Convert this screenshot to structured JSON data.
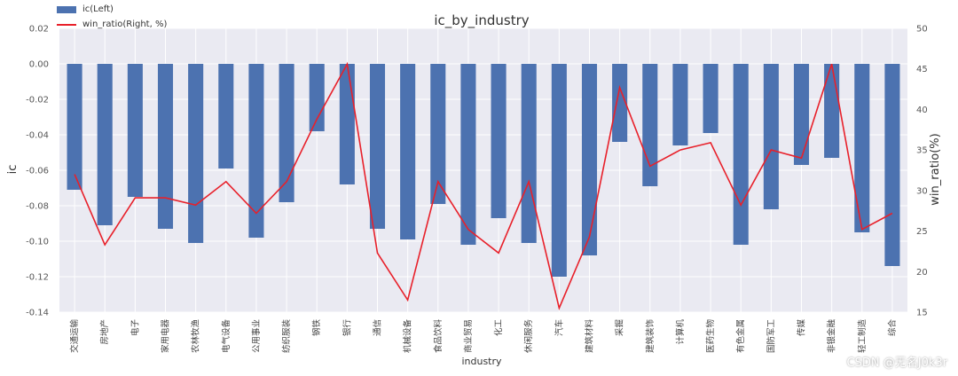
{
  "chart_data": {
    "type": "bar",
    "title": "ic_by_industry",
    "xlabel": "industry",
    "ylabel_left": "ic",
    "ylabel_right": "win_ratio(%)",
    "ylim_left": [
      -0.14,
      0.02
    ],
    "ylim_right": [
      15,
      50
    ],
    "yticks_left": [
      "0.02",
      "0.00",
      "-0.02",
      "-0.04",
      "-0.06",
      "-0.08",
      "-0.10",
      "-0.12",
      "-0.14"
    ],
    "yticks_right": [
      "50",
      "45",
      "40",
      "35",
      "30",
      "25",
      "20",
      "15"
    ],
    "grid": true,
    "legend_position": "top-left",
    "categories": [
      "交通运输",
      "房地产",
      "电子",
      "家用电器",
      "农林牧渔",
      "电气设备",
      "公用事业",
      "纺织服装",
      "钢铁",
      "银行",
      "通信",
      "机械设备",
      "食品饮料",
      "商业贸易",
      "化工",
      "休闲服务",
      "汽车",
      "建筑材料",
      "采掘",
      "建筑装饰",
      "计算机",
      "医药生物",
      "有色金属",
      "国防军工",
      "传媒",
      "非银金融",
      "轻工制造",
      "综合"
    ],
    "series": [
      {
        "name": "ic(Left)",
        "type": "bar",
        "axis": "left",
        "color": "#4c72b0",
        "values": [
          -0.071,
          -0.091,
          -0.075,
          -0.093,
          -0.101,
          -0.059,
          -0.098,
          -0.078,
          -0.038,
          -0.068,
          -0.093,
          -0.099,
          -0.079,
          -0.102,
          -0.087,
          -0.101,
          -0.12,
          -0.108,
          -0.044,
          -0.069,
          -0.046,
          -0.039,
          -0.102,
          -0.082,
          -0.057,
          -0.053,
          -0.095,
          -0.114
        ]
      },
      {
        "name": "win_ratio(Right, %)",
        "type": "line",
        "axis": "right",
        "color": "#e8202a",
        "values": [
          32.0,
          23.3,
          29.1,
          29.1,
          28.2,
          31.1,
          27.2,
          31.1,
          38.8,
          45.6,
          22.3,
          16.5,
          31.1,
          25.2,
          22.3,
          31.1,
          15.5,
          24.3,
          42.7,
          33.0,
          35.0,
          35.9,
          28.2,
          35.0,
          34.0,
          45.6,
          25.2,
          27.2
        ]
      }
    ]
  },
  "watermark": "CSDN @无名J0k3r"
}
